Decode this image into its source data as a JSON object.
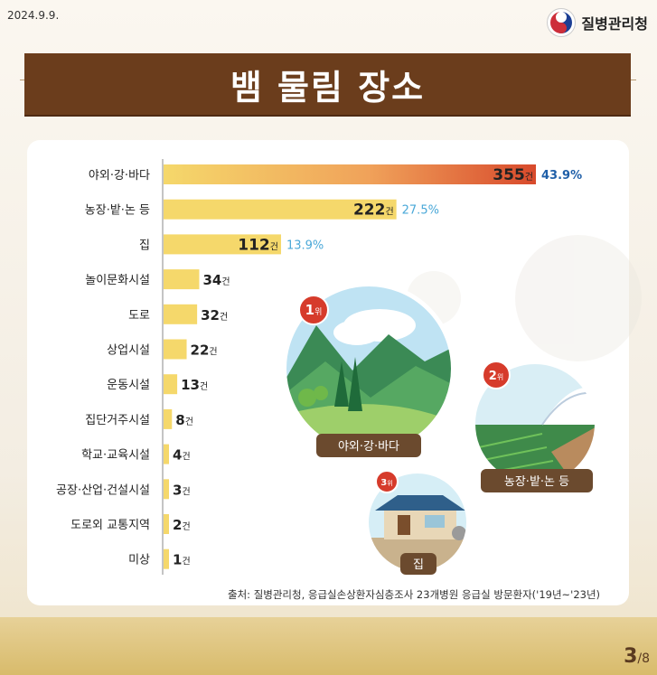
{
  "header": {
    "date": "2024.9.9.",
    "brand": "질병관리청",
    "title": "뱀 물림 장소"
  },
  "chart_data": {
    "type": "bar",
    "orientation": "horizontal",
    "title": "뱀 물림 장소",
    "categories": [
      "야외·강·바다",
      "농장·밭·논 등",
      "집",
      "놀이문화시설",
      "도로",
      "상업시설",
      "운동시설",
      "집단거주시설",
      "학교·교육시설",
      "공장·산업·건설시설",
      "도로외 교통지역",
      "미상"
    ],
    "values": [
      355,
      222,
      112,
      34,
      32,
      22,
      13,
      8,
      4,
      3,
      2,
      1
    ],
    "unit": "건",
    "percent_labels": [
      "43.9%",
      "27.5%",
      "13.9%"
    ],
    "highlight_color": "#d84a2c",
    "bar_color": "#f5d86b",
    "pct_colors": [
      "#1f5fa8",
      "#4aa8d8",
      "#4aa8d8"
    ]
  },
  "illustrations": {
    "rank1": {
      "badge_num": "1",
      "badge_suffix": "위",
      "caption": "야외·강·바다"
    },
    "rank2": {
      "badge_num": "2",
      "badge_suffix": "위",
      "caption": "농장·밭·논 등"
    },
    "rank3": {
      "badge_num": "3",
      "badge_suffix": "위",
      "caption": "집"
    }
  },
  "source": "출처: 질병관리청, 응급실손상환자심층조사 23개병원 응급실 방문환자('19년~'23년)",
  "footer": {
    "page_current": "3",
    "page_total": "/8"
  }
}
